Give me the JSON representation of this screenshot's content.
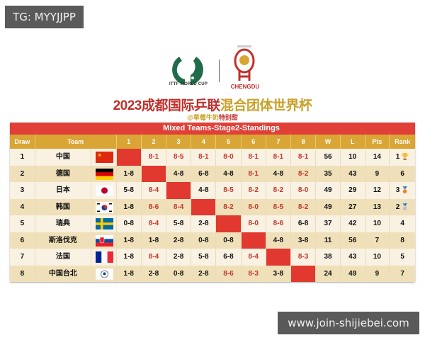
{
  "watermarks": {
    "top_left": "TG: MYYJJPP",
    "bottom_right": "www.join-shijiebei.com"
  },
  "logos": {
    "ittf": "ITTF WORLD CUP",
    "chengdu": "CHENGDU"
  },
  "title": {
    "part_red": "2023成都国际乒联",
    "part_gold": "混合团体世界杯"
  },
  "subtitle": {
    "part_gold": "@草莓牛奶",
    "part_red": "特别甜"
  },
  "table": {
    "title": "Mixed Teams-Stage2-Standings",
    "headers": {
      "draw": "Draw",
      "team": "Team",
      "m": [
        "1",
        "2",
        "3",
        "4",
        "5",
        "6",
        "7",
        "8"
      ],
      "w": "W",
      "l": "L",
      "pts": "Pts",
      "rank": "Rank"
    },
    "rows": [
      {
        "draw": "1",
        "team": "中国",
        "flag": "china-flag-icon",
        "m": [
          "",
          "8-1",
          "8-5",
          "8-1",
          "8-0",
          "8-1",
          "8-1",
          "8-1"
        ],
        "w": "56",
        "l": "10",
        "pts": "14",
        "rank": "1",
        "medal": "gold-trophy-icon"
      },
      {
        "draw": "2",
        "team": "德国",
        "flag": "germany-flag-icon",
        "m": [
          "1-8",
          "",
          "4-8",
          "6-8",
          "4-8",
          "8-1",
          "4-8",
          "8-2"
        ],
        "w": "35",
        "l": "43",
        "pts": "9",
        "rank": "6",
        "medal": ""
      },
      {
        "draw": "3",
        "team": "日本",
        "flag": "japan-flag-icon",
        "m": [
          "5-8",
          "8-4",
          "",
          "4-8",
          "8-5",
          "8-2",
          "8-2",
          "8-0"
        ],
        "w": "49",
        "l": "29",
        "pts": "12",
        "rank": "3",
        "medal": "bronze-medal-icon"
      },
      {
        "draw": "4",
        "team": "韩国",
        "flag": "korea-flag-icon",
        "m": [
          "1-8",
          "8-6",
          "8-4",
          "",
          "8-2",
          "8-0",
          "8-5",
          "8-2"
        ],
        "w": "49",
        "l": "27",
        "pts": "13",
        "rank": "2",
        "medal": "silver-medal-icon"
      },
      {
        "draw": "5",
        "team": "瑞典",
        "flag": "sweden-flag-icon",
        "m": [
          "0-8",
          "8-4",
          "5-8",
          "2-8",
          "",
          "8-0",
          "8-6",
          "6-8"
        ],
        "w": "37",
        "l": "42",
        "pts": "10",
        "rank": "4",
        "medal": ""
      },
      {
        "draw": "6",
        "team": "斯洛伐克",
        "flag": "slovakia-flag-icon",
        "m": [
          "1-8",
          "1-8",
          "2-8",
          "0-8",
          "0-8",
          "",
          "4-8",
          "3-8"
        ],
        "w": "11",
        "l": "56",
        "pts": "7",
        "rank": "8",
        "medal": ""
      },
      {
        "draw": "7",
        "team": "法国",
        "flag": "france-flag-icon",
        "m": [
          "1-8",
          "8-4",
          "2-8",
          "5-8",
          "6-8",
          "8-4",
          "",
          "8-3"
        ],
        "w": "38",
        "l": "43",
        "pts": "10",
        "rank": "5",
        "medal": ""
      },
      {
        "draw": "8",
        "team": "中国台北",
        "flag": "chinese-taipei-flag-icon",
        "m": [
          "1-8",
          "2-8",
          "0-8",
          "2-8",
          "8-6",
          "8-3",
          "3-8",
          ""
        ],
        "w": "24",
        "l": "49",
        "pts": "9",
        "rank": "7",
        "medal": ""
      }
    ]
  },
  "colors": {
    "title_bar": "#e04038",
    "header": "#d9a534",
    "win_text": "#c4382c",
    "row_light": "#f9f1e2",
    "row_dark": "#efe0b9"
  }
}
